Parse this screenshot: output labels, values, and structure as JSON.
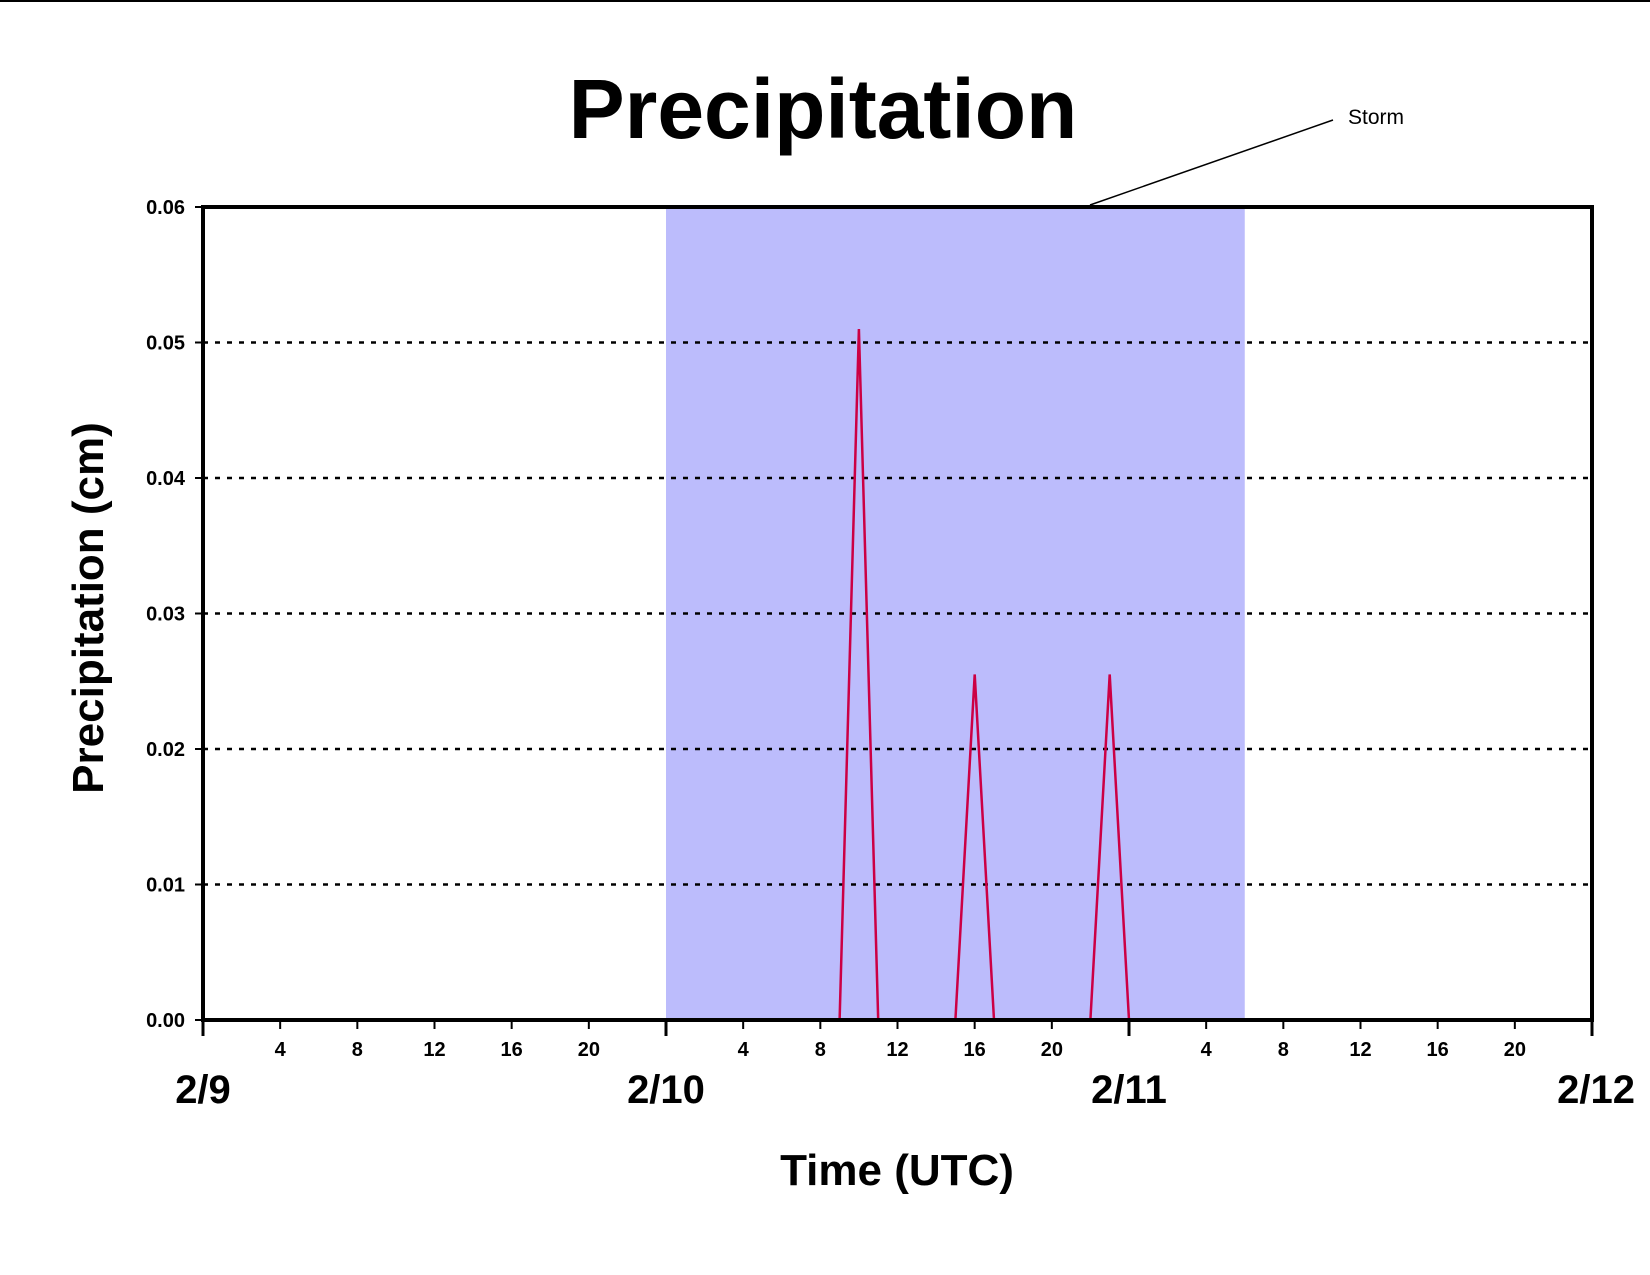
{
  "chart_data": {
    "type": "line",
    "title": "Precipitation",
    "xlabel": "Time (UTC)",
    "ylabel": "Precipitation (cm)",
    "ylim": [
      0,
      0.06
    ],
    "yticks": [
      "0.00",
      "0.01",
      "0.02",
      "0.03",
      "0.04",
      "0.05",
      "0.06"
    ],
    "x_start": "2/9 00:00",
    "x_end": "2/12 00:00",
    "x_hour_ticks": [
      {
        "day": "2/9",
        "hour": 4,
        "label": "4"
      },
      {
        "day": "2/9",
        "hour": 8,
        "label": "8"
      },
      {
        "day": "2/9",
        "hour": 12,
        "label": "12"
      },
      {
        "day": "2/9",
        "hour": 16,
        "label": "16"
      },
      {
        "day": "2/9",
        "hour": 20,
        "label": "20"
      },
      {
        "day": "2/10",
        "hour": 4,
        "label": "4"
      },
      {
        "day": "2/10",
        "hour": 8,
        "label": "8"
      },
      {
        "day": "2/10",
        "hour": 12,
        "label": "12"
      },
      {
        "day": "2/10",
        "hour": 16,
        "label": "16"
      },
      {
        "day": "2/10",
        "hour": 20,
        "label": "20"
      },
      {
        "day": "2/11",
        "hour": 4,
        "label": "4"
      },
      {
        "day": "2/11",
        "hour": 8,
        "label": "8"
      },
      {
        "day": "2/11",
        "hour": 12,
        "label": "12"
      },
      {
        "day": "2/11",
        "hour": 16,
        "label": "16"
      },
      {
        "day": "2/11",
        "hour": 20,
        "label": "20"
      }
    ],
    "x_day_labels": [
      "2/9",
      "2/10",
      "2/11",
      "2/12"
    ],
    "grid": "horizontal dotted",
    "highlight": {
      "label": "Storm",
      "start": "2/10 00:00",
      "end": "2/11 06:00",
      "color": "#bcbcfc"
    },
    "series": [
      {
        "color": "#cc0044",
        "points": [
          {
            "day": "2/9",
            "hour": 0,
            "value": 0
          },
          {
            "day": "2/10",
            "hour": 9,
            "value": 0
          },
          {
            "day": "2/10",
            "hour": 10,
            "value": 0.051
          },
          {
            "day": "2/10",
            "hour": 11,
            "value": 0
          },
          {
            "day": "2/10",
            "hour": 15,
            "value": 0
          },
          {
            "day": "2/10",
            "hour": 16,
            "value": 0.0255
          },
          {
            "day": "2/10",
            "hour": 17,
            "value": 0
          },
          {
            "day": "2/10",
            "hour": 22,
            "value": 0
          },
          {
            "day": "2/10",
            "hour": 23,
            "value": 0.0255
          },
          {
            "day": "2/11",
            "hour": 0,
            "value": 0
          },
          {
            "day": "2/12",
            "hour": 0,
            "value": 0
          }
        ]
      }
    ]
  }
}
